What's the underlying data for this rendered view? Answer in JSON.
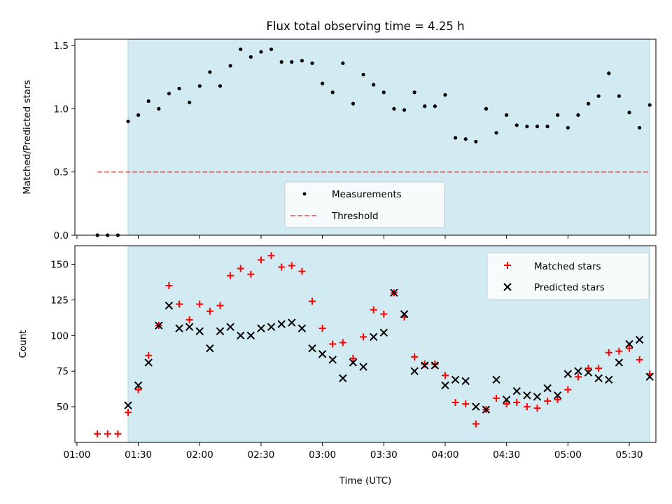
{
  "title": "Flux total observing time = 4.25 h",
  "colors": {
    "shade": "#add8e6",
    "measurements": "#000000",
    "threshold": "#ff0000",
    "matched": "#ff0000",
    "predicted": "#000000"
  },
  "chart_data": [
    {
      "type": "scatter",
      "panel": "top",
      "title": "Flux total observing time = 4.25 h",
      "xlabel": "",
      "ylabel": "Matched/Predicted stars",
      "xlim": [
        "00:59",
        "05:43"
      ],
      "ylim": [
        0,
        1.55
      ],
      "y_ticks": [
        "0.0",
        "0.5",
        "1.0",
        "1.5"
      ],
      "x_ticks_labels_shown": false,
      "shaded_region": {
        "start": "01:25",
        "end": "05:40",
        "color": "light blue"
      },
      "legend": {
        "placement": "lower center",
        "entries": [
          "Measurements",
          "Threshold"
        ]
      },
      "threshold": {
        "name": "Threshold",
        "value": 0.5,
        "x_start": "01:10",
        "x_end": "05:40",
        "style": "dashed"
      },
      "series": [
        {
          "name": "Measurements",
          "marker": "dot",
          "x": [
            "01:10",
            "01:15",
            "01:20",
            "01:25",
            "01:30",
            "01:35",
            "01:40",
            "01:45",
            "01:50",
            "01:55",
            "02:00",
            "02:05",
            "02:10",
            "02:15",
            "02:20",
            "02:25",
            "02:30",
            "02:35",
            "02:40",
            "02:45",
            "02:50",
            "02:55",
            "03:00",
            "03:05",
            "03:10",
            "03:15",
            "03:20",
            "03:25",
            "03:30",
            "03:35",
            "03:40",
            "03:45",
            "03:50",
            "03:55",
            "04:00",
            "04:05",
            "04:10",
            "04:15",
            "04:20",
            "04:25",
            "04:30",
            "04:35",
            "04:40",
            "04:45",
            "04:50",
            "04:55",
            "05:00",
            "05:05",
            "05:10",
            "05:15",
            "05:20",
            "05:25",
            "05:30",
            "05:35",
            "05:40"
          ],
          "values": [
            0.0,
            0.0,
            0.0,
            0.9,
            0.95,
            1.06,
            1.0,
            1.12,
            1.16,
            1.05,
            1.18,
            1.29,
            1.18,
            1.34,
            1.47,
            1.41,
            1.45,
            1.47,
            1.37,
            1.37,
            1.38,
            1.36,
            1.2,
            1.13,
            1.36,
            1.04,
            1.27,
            1.19,
            1.13,
            1.0,
            0.99,
            1.13,
            1.02,
            1.02,
            1.11,
            0.77,
            0.76,
            0.74,
            1.0,
            0.81,
            0.95,
            0.87,
            0.86,
            0.86,
            0.86,
            0.95,
            0.85,
            0.95,
            1.04,
            1.1,
            1.28,
            1.1,
            0.97,
            0.85,
            1.03
          ]
        }
      ]
    },
    {
      "type": "scatter",
      "panel": "bottom",
      "xlabel": "Time (UTC)",
      "ylabel": "Count",
      "xlim": [
        "00:59",
        "05:43"
      ],
      "ylim": [
        25,
        163
      ],
      "y_ticks": [
        "50",
        "75",
        "100",
        "125",
        "150"
      ],
      "x_ticks": [
        "01:00",
        "01:30",
        "02:00",
        "02:30",
        "03:00",
        "03:30",
        "04:00",
        "04:30",
        "05:00",
        "05:30"
      ],
      "shaded_region": {
        "start": "01:25",
        "end": "05:40",
        "color": "light blue"
      },
      "legend": {
        "placement": "top-right",
        "entries": [
          "Matched stars",
          "Predicted stars"
        ]
      },
      "series": [
        {
          "name": "Matched stars",
          "marker": "+",
          "x": [
            "01:10",
            "01:15",
            "01:20",
            "01:25",
            "01:30",
            "01:35",
            "01:40",
            "01:45",
            "01:50",
            "01:55",
            "02:00",
            "02:05",
            "02:10",
            "02:15",
            "02:20",
            "02:25",
            "02:30",
            "02:35",
            "02:40",
            "02:45",
            "02:50",
            "02:55",
            "03:00",
            "03:05",
            "03:10",
            "03:15",
            "03:20",
            "03:25",
            "03:30",
            "03:35",
            "03:40",
            "03:45",
            "03:50",
            "03:55",
            "04:00",
            "04:05",
            "04:10",
            "04:15",
            "04:20",
            "04:25",
            "04:30",
            "04:35",
            "04:40",
            "04:45",
            "04:50",
            "04:55",
            "05:00",
            "05:05",
            "05:10",
            "05:15",
            "05:20",
            "05:25",
            "05:30",
            "05:35",
            "05:40"
          ],
          "values": [
            31,
            31,
            31,
            46,
            62,
            86,
            107,
            135,
            122,
            111,
            122,
            117,
            121,
            142,
            147,
            143,
            153,
            156,
            148,
            149,
            145,
            124,
            105,
            94,
            95,
            84,
            99,
            118,
            115,
            130,
            113,
            85,
            80,
            80,
            72,
            53,
            52,
            38,
            48,
            56,
            52,
            53,
            50,
            49,
            54,
            55,
            62,
            71,
            77,
            77,
            88,
            89,
            91,
            83,
            73
          ]
        },
        {
          "name": "Predicted stars",
          "marker": "x",
          "x": [
            "01:25",
            "01:30",
            "01:35",
            "01:40",
            "01:45",
            "01:50",
            "01:55",
            "02:00",
            "02:05",
            "02:10",
            "02:15",
            "02:20",
            "02:25",
            "02:30",
            "02:35",
            "02:40",
            "02:45",
            "02:50",
            "02:55",
            "03:00",
            "03:05",
            "03:10",
            "03:15",
            "03:20",
            "03:25",
            "03:30",
            "03:35",
            "03:40",
            "03:45",
            "03:50",
            "03:55",
            "04:00",
            "04:05",
            "04:10",
            "04:15",
            "04:20",
            "04:25",
            "04:30",
            "04:35",
            "04:40",
            "04:45",
            "04:50",
            "04:55",
            "05:00",
            "05:05",
            "05:10",
            "05:15",
            "05:20",
            "05:25",
            "05:30",
            "05:35",
            "05:40"
          ],
          "values": [
            51,
            65,
            81,
            107,
            121,
            105,
            106,
            103,
            91,
            103,
            106,
            100,
            100,
            105,
            106,
            108,
            109,
            105,
            91,
            87,
            83,
            70,
            81,
            78,
            99,
            102,
            130,
            115,
            75,
            79,
            79,
            65,
            69,
            68,
            50,
            48,
            69,
            55,
            61,
            58,
            57,
            63,
            58,
            73,
            75,
            74,
            70,
            69,
            81,
            94,
            97,
            71
          ]
        }
      ]
    }
  ]
}
